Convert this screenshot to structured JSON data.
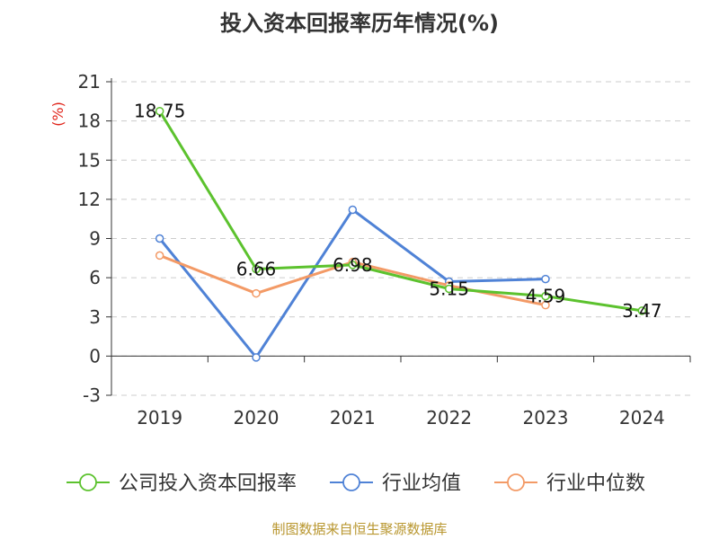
{
  "title": "投入资本回报率历年情况(%)",
  "source": "制图数据来自恒生聚源数据库",
  "chart_data": {
    "type": "line",
    "x": [
      "2019",
      "2020",
      "2021",
      "2022",
      "2023",
      "2024"
    ],
    "yunit": "(%)",
    "ylim": [
      -3,
      21
    ],
    "yticks": [
      "21",
      "18",
      "15",
      "12",
      "9",
      "6",
      "3",
      "0",
      "-3"
    ],
    "grid": true,
    "legend_position": "bottom",
    "series": [
      {
        "name": "公司投入资本回报率",
        "color": "#5cc22e",
        "values": [
          18.75,
          6.66,
          6.98,
          5.15,
          4.59,
          3.47
        ],
        "labels": [
          "18.75",
          "6.66",
          "6.98",
          "5.15",
          "4.59",
          "3.47"
        ]
      },
      {
        "name": "行业均值",
        "color": "#4f82d6",
        "values": [
          9.0,
          -0.1,
          11.2,
          5.7,
          5.9,
          null
        ]
      },
      {
        "name": "行业中位数",
        "color": "#f39a66",
        "values": [
          7.7,
          4.8,
          7.2,
          5.4,
          3.9,
          null
        ]
      }
    ]
  }
}
